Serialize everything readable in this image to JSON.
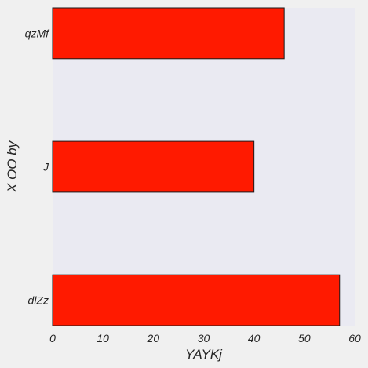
{
  "chart_data": {
    "type": "bar",
    "orientation": "horizontal",
    "categories": [
      "qzMf",
      "J",
      "dlZz"
    ],
    "values": [
      46,
      40,
      57
    ],
    "xlabel": "YAYKj",
    "ylabel": "X OO by",
    "xlim": [
      0,
      60
    ],
    "xticks": [
      0,
      10,
      20,
      30,
      40,
      50,
      60
    ],
    "grid": false,
    "legend": "none",
    "colors": {
      "bar": "#ff1a00",
      "bar_edge": "#1a1a1a",
      "plot_background": "#eaeaf2",
      "figure_background": "#f0f0f0"
    }
  }
}
